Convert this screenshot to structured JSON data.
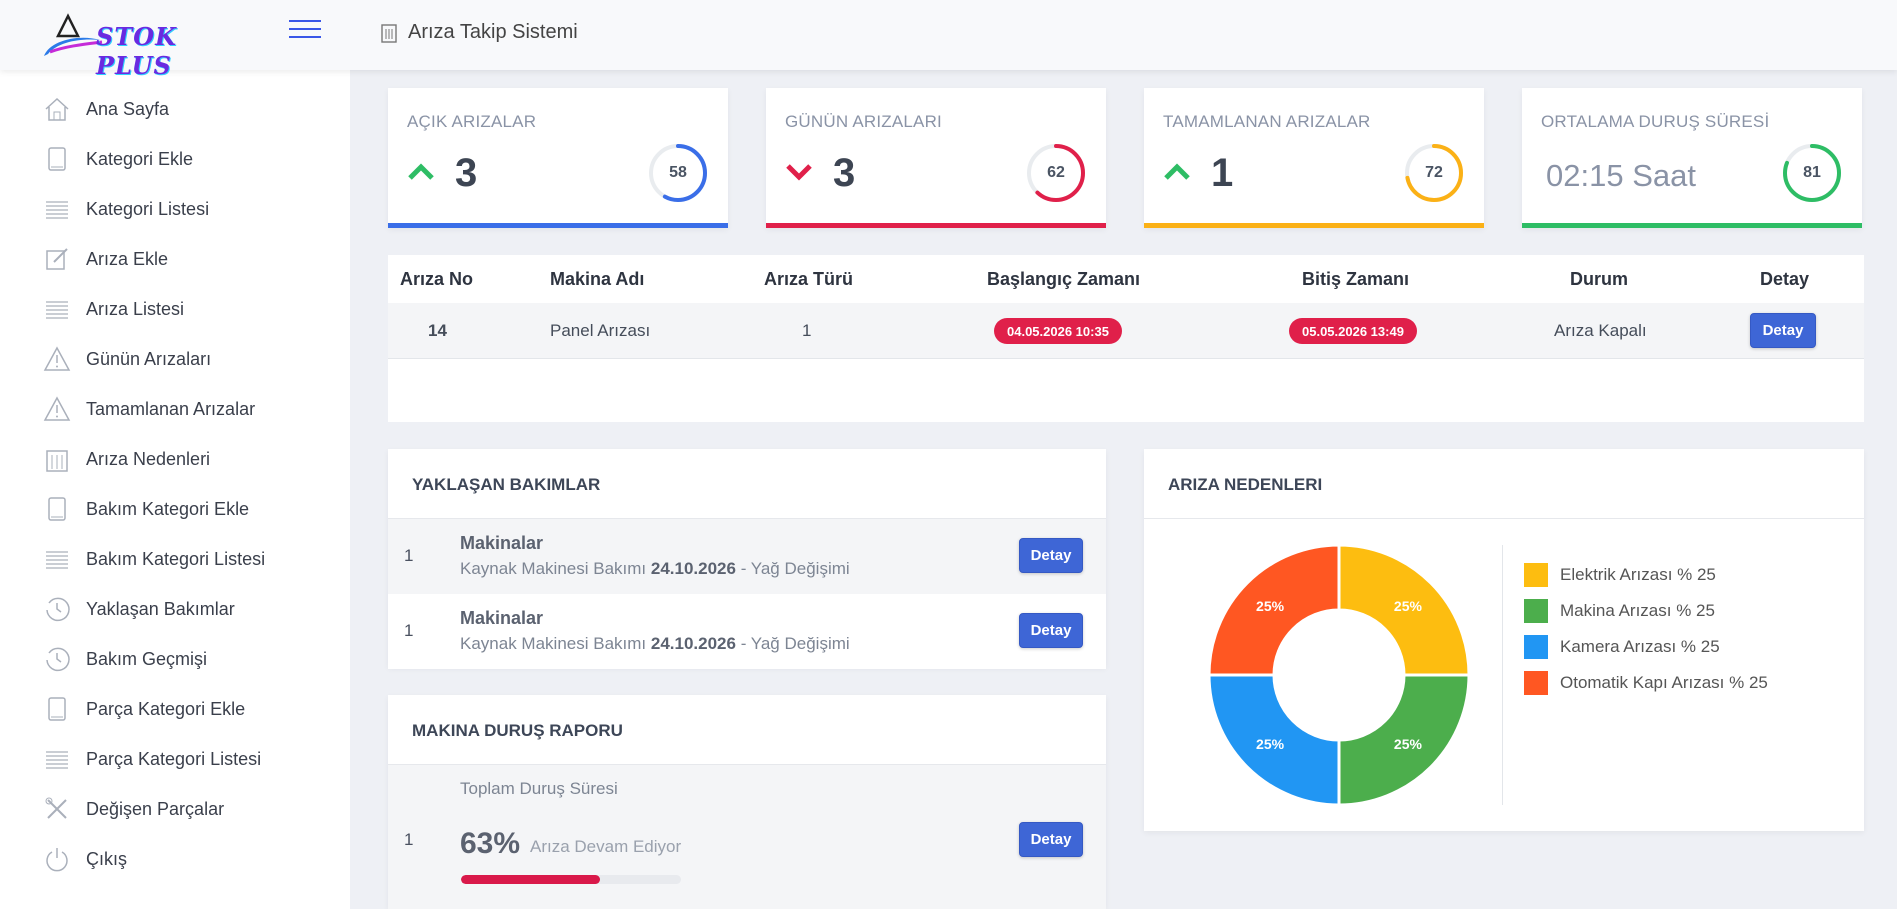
{
  "brand": {
    "name": "STOK PLUS"
  },
  "header": {
    "title": "Arıza Takip Sistemi"
  },
  "sidebar": {
    "items": [
      {
        "label": "Ana Sayfa",
        "icon": "home-icon"
      },
      {
        "label": "Kategori Ekle",
        "icon": "book-icon"
      },
      {
        "label": "Kategori Listesi",
        "icon": "list-icon"
      },
      {
        "label": "Arıza Ekle",
        "icon": "edit-icon"
      },
      {
        "label": "Arıza Listesi",
        "icon": "list-icon"
      },
      {
        "label": "Günün Arızaları",
        "icon": "warning-icon"
      },
      {
        "label": "Tamamlanan Arızalar",
        "icon": "warning-icon"
      },
      {
        "label": "Arıza Nedenleri",
        "icon": "building-icon"
      },
      {
        "label": "Bakım Kategori Ekle",
        "icon": "book-icon"
      },
      {
        "label": "Bakım Kategori Listesi",
        "icon": "list-icon"
      },
      {
        "label": "Yaklaşan Bakımlar",
        "icon": "clock-icon"
      },
      {
        "label": "Bakım Geçmişi",
        "icon": "clock-icon"
      },
      {
        "label": "Parça Kategori Ekle",
        "icon": "book-icon"
      },
      {
        "label": "Parça Kategori Listesi",
        "icon": "list-icon"
      },
      {
        "label": "Değişen Parçalar",
        "icon": "tools-icon"
      },
      {
        "label": "Çıkış",
        "icon": "power-icon"
      }
    ]
  },
  "stats": [
    {
      "title": "AÇIK ARIZALAR",
      "value": "3",
      "trend": "up",
      "percent": 58,
      "percent_label": "58",
      "color": "#3a6ee8"
    },
    {
      "title": "GÜNÜN ARIZALARI",
      "value": "3",
      "trend": "down",
      "percent": 62,
      "percent_label": "62",
      "color": "#e0204a"
    },
    {
      "title": "TAMAMLANAN ARIZALAR",
      "value": "1",
      "trend": "up",
      "percent": 72,
      "percent_label": "72",
      "color": "#fbb116"
    },
    {
      "title": "ORTALAMA DURUŞ SÜRESİ",
      "value": "02:15 Saat",
      "trend": "none",
      "percent": 81,
      "percent_label": "81",
      "color": "#2ebd65"
    }
  ],
  "faults_table": {
    "columns": [
      "Arıza No",
      "Makina Adı",
      "Arıza Türü",
      "Başlangıç Zamanı",
      "Bitiş Zamanı",
      "Durum",
      "Detay"
    ],
    "rows": [
      {
        "no": "14",
        "machine": "Panel Arızası",
        "type": "1",
        "start": "04.05.2026 10:35",
        "end": "05.05.2026 13:49",
        "status": "Arıza Kapalı",
        "detail": "Detay"
      }
    ]
  },
  "upcoming": {
    "title": "YAKLAŞAN BAKIMLAR",
    "items": [
      {
        "no": "1",
        "title": "Makinalar",
        "desc": "Kaynak Makinesi Bakımı",
        "date": "24.10.2026",
        "suffix": "- Yağ Değişimi",
        "button": "Detay"
      },
      {
        "no": "1",
        "title": "Makinalar",
        "desc": "Kaynak Makinesi Bakımı",
        "date": "24.10.2026",
        "suffix": "- Yağ Değişimi",
        "button": "Detay"
      }
    ]
  },
  "downtime": {
    "title": "MAKINA DURUŞ RAPORU",
    "no": "1",
    "label": "Toplam Duruş Süresi",
    "percent": 63,
    "percent_label": "63%",
    "status": "Arıza Devam Ediyor",
    "button": "Detay"
  },
  "reasons": {
    "title": "ARIZA NEDENLERI",
    "legend": [
      {
        "label": "Elektrik Arızası % 25",
        "color": "#fdbd10"
      },
      {
        "label": "Makina Arızası % 25",
        "color": "#4cae4c"
      },
      {
        "label": "Kamera Arızası % 25",
        "color": "#2196f3"
      },
      {
        "label": "Otomatik Kapı Arızası % 25",
        "color": "#ff5722"
      }
    ]
  },
  "chart_data": {
    "type": "pie",
    "categories": [
      "Elektrik Arızası",
      "Makina Arızası",
      "Kamera Arızası",
      "Otomatik Kapı Arızası"
    ],
    "values": [
      25,
      25,
      25,
      25
    ],
    "labels": [
      "25%",
      "25%",
      "25%",
      "25%"
    ],
    "colors": [
      "#fdbd10",
      "#4cae4c",
      "#2196f3",
      "#ff5722"
    ],
    "title": "ARIZA NEDENLERI",
    "legend": "right"
  }
}
